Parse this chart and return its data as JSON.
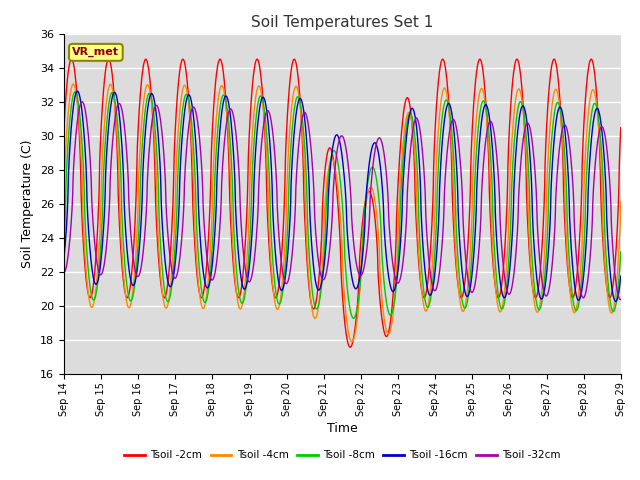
{
  "title": "Soil Temperatures Set 1",
  "xlabel": "Time",
  "ylabel": "Soil Temperature (C)",
  "ylim": [
    16,
    36
  ],
  "xlim": [
    0,
    15
  ],
  "bg_color": "#dcdcdc",
  "fig_color": "#ffffff",
  "grid_color": "#ffffff",
  "annotation": "VR_met",
  "xtick_labels": [
    "Sep 14",
    "Sep 15",
    "Sep 16",
    "Sep 17",
    "Sep 18",
    "Sep 19",
    "Sep 20",
    "Sep 21",
    "Sep 22",
    "Sep 23",
    "Sep 24",
    "Sep 25",
    "Sep 26",
    "Sep 27",
    "Sep 28",
    "Sep 29"
  ],
  "legend_items": [
    "Tsoil -2cm",
    "Tsoil -4cm",
    "Tsoil -8cm",
    "Tsoil -16cm",
    "Tsoil -32cm"
  ],
  "legend_colors": [
    "#ff0000",
    "#ff8800",
    "#00cc00",
    "#0000cc",
    "#bb00bb"
  ]
}
